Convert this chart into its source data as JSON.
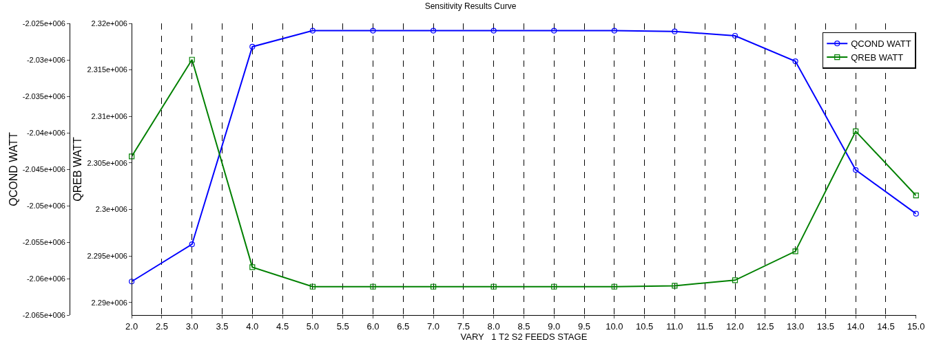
{
  "chart_data": {
    "type": "line",
    "title": "Sensitivity Results Curve",
    "xlabel": "VARY   1 T2 S2 FEEDS STAGE",
    "ylabel": "QCOND WATT",
    "y2label": "QREB WATT",
    "x": [
      2,
      3,
      4,
      5,
      6,
      7,
      8,
      9,
      10,
      11,
      12,
      13,
      14,
      15
    ],
    "series": [
      {
        "name": "QCOND WATT",
        "color": "#0000ff",
        "marker": "circle",
        "values": [
          -2060400,
          -2055300,
          -2028200,
          -2026000,
          -2026000,
          -2026000,
          -2026000,
          -2026000,
          -2026000,
          -2026100,
          -2026700,
          -2030200,
          -2045100,
          -2051100
        ]
      },
      {
        "name": "QREB WATT",
        "color": "#008000",
        "marker": "square",
        "axis": "y2",
        "values": [
          2305700,
          2316100,
          2293800,
          2291700,
          2291700,
          2291700,
          2291700,
          2291700,
          2291700,
          2291800,
          2292400,
          2295500,
          2308400,
          2301500
        ]
      }
    ],
    "xlim": [
      2,
      15
    ],
    "xticks": [
      {
        "value": 2,
        "label": "2.0"
      },
      {
        "value": 2.5,
        "label": "2.5"
      },
      {
        "value": 3,
        "label": "3.0"
      },
      {
        "value": 3.5,
        "label": "3.5"
      },
      {
        "value": 4,
        "label": "4.0"
      },
      {
        "value": 4.5,
        "label": "4.5"
      },
      {
        "value": 5,
        "label": "5.0"
      },
      {
        "value": 5.5,
        "label": "5.5"
      },
      {
        "value": 6,
        "label": "6.0"
      },
      {
        "value": 6.5,
        "label": "6.5"
      },
      {
        "value": 7,
        "label": "7.0"
      },
      {
        "value": 7.5,
        "label": "7.5"
      },
      {
        "value": 8,
        "label": "8.0"
      },
      {
        "value": 8.5,
        "label": "8.5"
      },
      {
        "value": 9,
        "label": "9.0"
      },
      {
        "value": 9.5,
        "label": "9.5"
      },
      {
        "value": 10,
        "label": "10.0"
      },
      {
        "value": 10.5,
        "label": "10.5"
      },
      {
        "value": 11,
        "label": "11.0"
      },
      {
        "value": 11.5,
        "label": "11.5"
      },
      {
        "value": 12,
        "label": "12.0"
      },
      {
        "value": 12.5,
        "label": "12.5"
      },
      {
        "value": 13,
        "label": "13.0"
      },
      {
        "value": 13.5,
        "label": "13.5"
      },
      {
        "value": 14,
        "label": "14.0"
      },
      {
        "value": 14.5,
        "label": "14.5"
      },
      {
        "value": 15,
        "label": "15.0"
      }
    ],
    "ylim": [
      -2065000,
      -2025000
    ],
    "yticks": [
      {
        "value": -2065000,
        "label": "-2.065e+006"
      },
      {
        "value": -2060000,
        "label": "-2.06e+006"
      },
      {
        "value": -2055000,
        "label": "-2.055e+006"
      },
      {
        "value": -2050000,
        "label": "-2.05e+006"
      },
      {
        "value": -2045000,
        "label": "-2.045e+006"
      },
      {
        "value": -2040000,
        "label": "-2.04e+006"
      },
      {
        "value": -2035000,
        "label": "-2.035e+006"
      },
      {
        "value": -2030000,
        "label": "-2.03e+006"
      },
      {
        "value": -2025000,
        "label": "-2.025e+006"
      }
    ],
    "y2lim": [
      2288650,
      2320000
    ],
    "y2ticks": [
      {
        "value": 2290000,
        "label": "2.29e+006"
      },
      {
        "value": 2295000,
        "label": "2.295e+006"
      },
      {
        "value": 2300000,
        "label": "2.3e+006"
      },
      {
        "value": 2305000,
        "label": "2.305e+006"
      },
      {
        "value": 2310000,
        "label": "2.31e+006"
      },
      {
        "value": 2315000,
        "label": "2.315e+006"
      },
      {
        "value": 2320000,
        "label": "2.32e+006"
      }
    ],
    "grid": "x",
    "legend": "top right",
    "line_style": "solid"
  }
}
